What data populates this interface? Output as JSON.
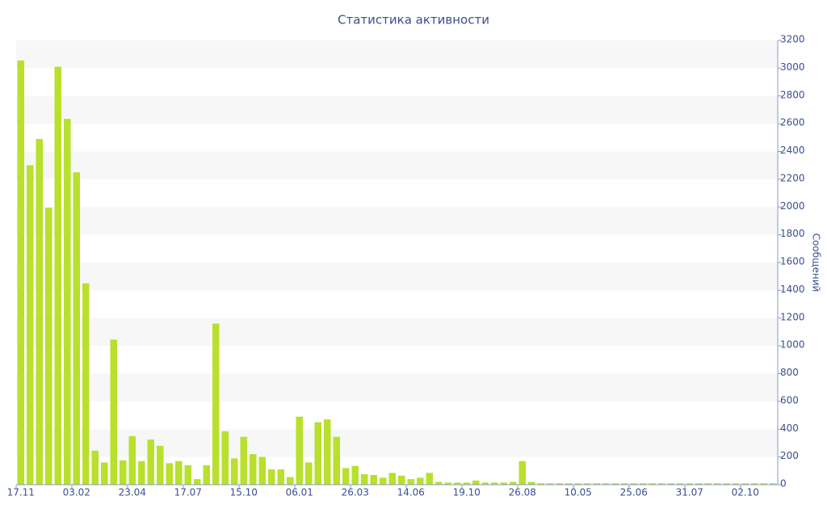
{
  "chart_data": {
    "type": "bar",
    "title": "Статистика активности",
    "y_label": "Сообщений",
    "color": "#b8e02c",
    "grid": true,
    "categories": [
      "17.11",
      null,
      null,
      null,
      null,
      null,
      "03.02",
      null,
      null,
      null,
      null,
      null,
      "23.04",
      null,
      null,
      null,
      null,
      null,
      "17.07",
      null,
      null,
      null,
      null,
      null,
      "15.10",
      null,
      null,
      null,
      null,
      null,
      "06.01",
      null,
      null,
      null,
      null,
      null,
      "26.03",
      null,
      null,
      null,
      null,
      null,
      "14.06",
      null,
      null,
      null,
      null,
      null,
      "19.10",
      null,
      null,
      null,
      null,
      null,
      "26.08",
      null,
      null,
      null,
      null,
      null,
      "10.05",
      null,
      null,
      null,
      null,
      null,
      "25.06",
      null,
      null,
      null,
      null,
      null,
      "31.07",
      null,
      null,
      null,
      null,
      null,
      "02.10",
      null,
      null,
      null
    ],
    "values": [
      3055,
      2300,
      2490,
      1995,
      3010,
      2635,
      2250,
      1450,
      245,
      160,
      1045,
      175,
      350,
      170,
      325,
      280,
      155,
      170,
      140,
      40,
      140,
      1160,
      385,
      190,
      345,
      220,
      200,
      110,
      110,
      55,
      490,
      160,
      450,
      470,
      345,
      120,
      135,
      75,
      70,
      50,
      85,
      65,
      40,
      50,
      85,
      20,
      15,
      15,
      15,
      30,
      15,
      15,
      15,
      20,
      170,
      20,
      10,
      10,
      10,
      10,
      10,
      10,
      10,
      10,
      10,
      10,
      10,
      10,
      10,
      10,
      10,
      10,
      10,
      10,
      10,
      10,
      10,
      10,
      10,
      10,
      10,
      10
    ],
    "ylim": [
      0,
      3200
    ],
    "yticks": [
      0,
      200,
      400,
      600,
      800,
      1000,
      1200,
      1400,
      1600,
      1800,
      2000,
      2200,
      2400,
      2600,
      2800,
      3000,
      3200
    ]
  }
}
